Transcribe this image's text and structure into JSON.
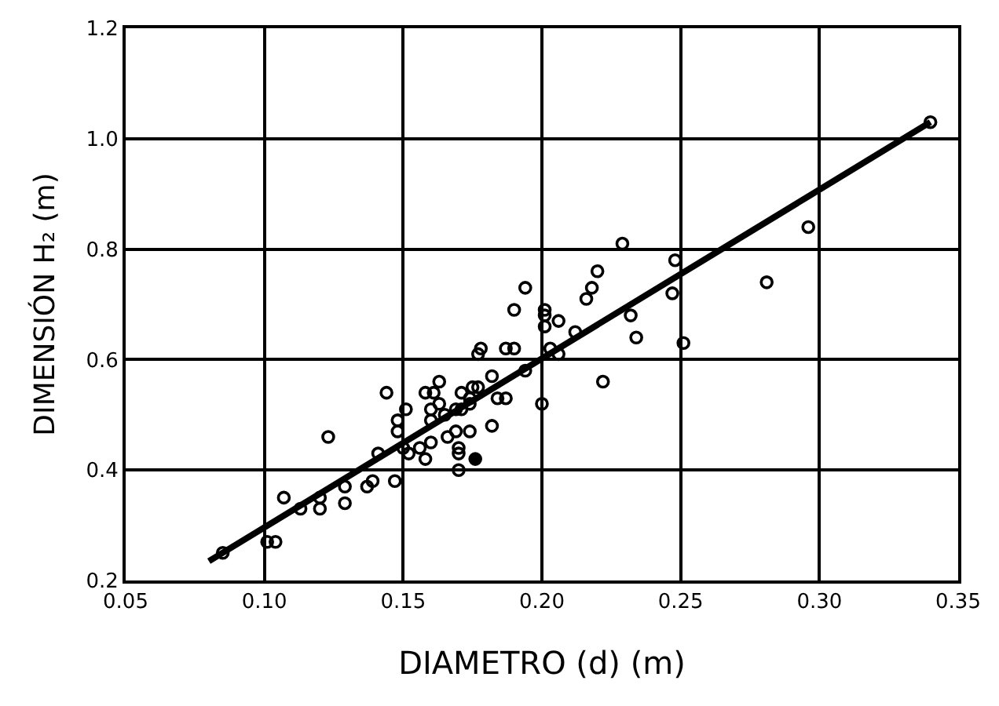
{
  "chart_data": {
    "type": "scatter",
    "xlabel": "DIAMETRO (d) (m)",
    "ylabel": "DIMENSIÓN H₂ (m)",
    "xlim": [
      0.05,
      0.35
    ],
    "ylim": [
      0.2,
      1.2
    ],
    "xticks": [
      0.05,
      {
        "value": 0.1,
        "label": "0.10"
      },
      0.15,
      {
        "value": 0.2,
        "label": "0.20"
      },
      0.25,
      {
        "value": 0.3,
        "label": "0.30"
      },
      0.35
    ],
    "yticks": [
      0.2,
      0.4,
      0.6,
      0.8,
      {
        "value": 1.0,
        "label": "1.0"
      },
      1.2
    ],
    "grid": true,
    "series": [
      {
        "color": "#000000",
        "marker": "circle-open",
        "x": [
          0.085,
          0.101,
          0.104,
          0.107,
          0.113,
          0.12,
          0.12,
          0.123,
          0.129,
          0.129,
          0.137,
          0.139,
          0.141,
          0.144,
          0.147,
          0.148,
          0.148,
          0.151,
          0.15,
          0.152,
          0.156,
          0.158,
          0.158,
          0.16,
          0.16,
          0.16,
          0.161,
          0.163,
          0.163,
          0.165,
          0.166,
          0.169,
          0.169,
          0.17,
          0.17,
          0.17,
          0.171,
          0.171,
          0.174,
          0.174,
          0.174,
          0.175,
          0.177,
          0.178,
          0.177,
          0.182,
          0.182,
          0.184,
          0.187,
          0.187,
          0.19,
          0.19,
          0.194,
          0.194,
          0.2,
          0.201,
          0.201,
          0.201,
          0.203,
          0.206,
          0.206,
          0.212,
          0.216,
          0.218,
          0.22,
          0.222,
          0.229,
          0.232,
          0.234,
          0.247,
          0.248,
          0.251,
          0.281,
          0.296,
          0.34
        ],
        "values": [
          0.25,
          0.27,
          0.27,
          0.35,
          0.33,
          0.35,
          0.33,
          0.46,
          0.37,
          0.34,
          0.37,
          0.38,
          0.43,
          0.54,
          0.38,
          0.49,
          0.47,
          0.51,
          0.44,
          0.43,
          0.44,
          0.42,
          0.54,
          0.49,
          0.51,
          0.45,
          0.54,
          0.56,
          0.52,
          0.5,
          0.46,
          0.51,
          0.47,
          0.44,
          0.43,
          0.4,
          0.54,
          0.51,
          0.53,
          0.52,
          0.47,
          0.55,
          0.55,
          0.62,
          0.61,
          0.57,
          0.48,
          0.53,
          0.53,
          0.62,
          0.62,
          0.69,
          0.73,
          0.58,
          0.52,
          0.69,
          0.68,
          0.66,
          0.62,
          0.61,
          0.67,
          0.65,
          0.71,
          0.73,
          0.76,
          0.56,
          0.81,
          0.68,
          0.64,
          0.72,
          0.78,
          0.63,
          0.74,
          0.84,
          1.03
        ]
      },
      {
        "color": "#000000",
        "marker": "circle",
        "x": [
          0.176
        ],
        "values": [
          0.42
        ]
      },
      {
        "type": "line",
        "color": "#000000",
        "marker": "none",
        "x": [
          0.08,
          0.34
        ],
        "values": [
          0.235,
          1.03
        ]
      }
    ]
  }
}
